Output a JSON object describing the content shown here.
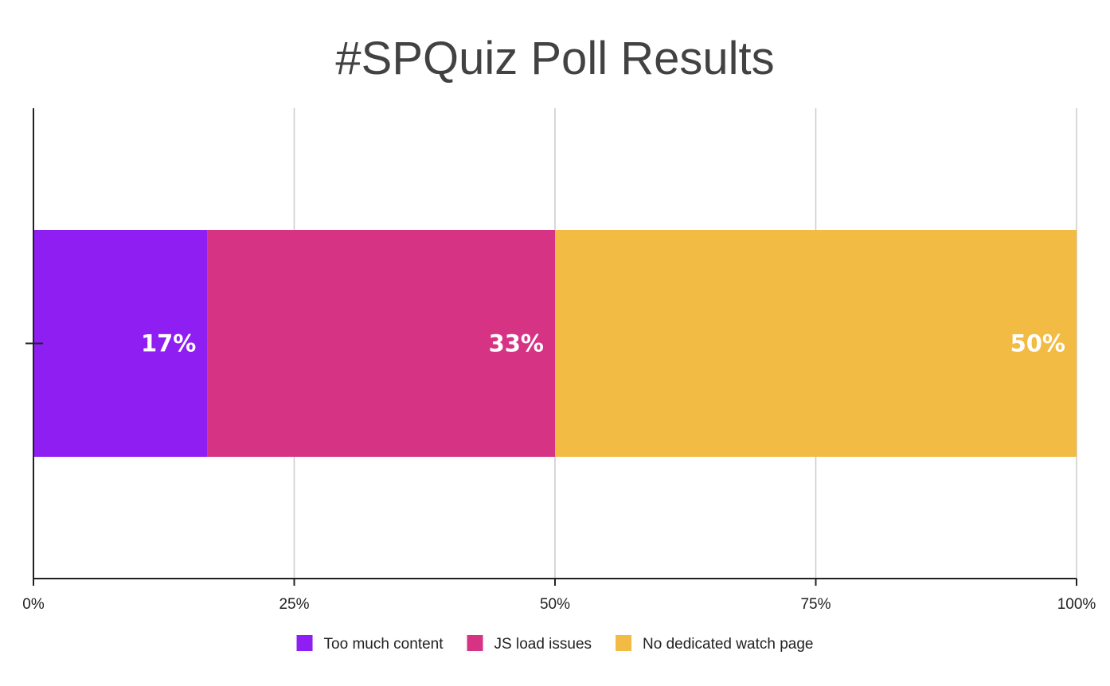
{
  "chart_data": {
    "type": "bar",
    "orientation": "horizontal",
    "stacked": true,
    "title": "#SPQuiz Poll Results",
    "xlabel": "",
    "ylabel": "",
    "xlim": [
      0,
      100
    ],
    "x_ticks": [
      "0%",
      "25%",
      "50%",
      "75%",
      "100%"
    ],
    "x_tick_values": [
      0,
      25,
      50,
      75,
      100
    ],
    "grid": true,
    "legend_position": "bottom",
    "series": [
      {
        "name": "Too much content",
        "value": 16.67,
        "label": "17%",
        "color": "#8e1ef2"
      },
      {
        "name": "JS load issues",
        "value": 33.33,
        "label": "33%",
        "color": "#d63384"
      },
      {
        "name": "No dedicated watch page",
        "value": 50,
        "label": "50%",
        "color": "#f2bb44"
      }
    ]
  }
}
